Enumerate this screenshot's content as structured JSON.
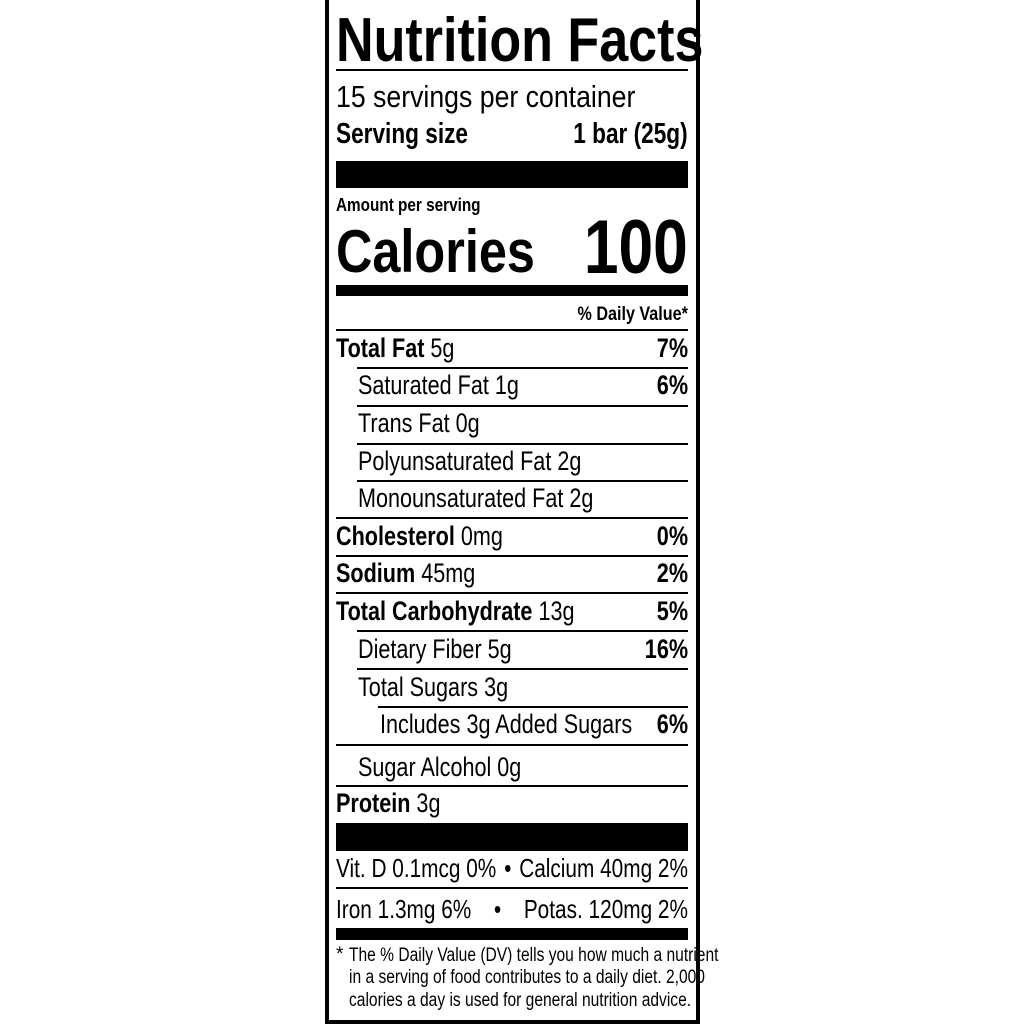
{
  "title": "Nutrition Facts",
  "servings_per_container": "15 servings per container",
  "serving_size": {
    "label": "Serving size",
    "value": "1 bar (25g)"
  },
  "amount_per_serving": "Amount per serving",
  "calories": {
    "label": "Calories",
    "value": "100"
  },
  "daily_value_header": "% Daily Value*",
  "nutrients": [
    {
      "name": "Total Fat",
      "amount": "5g",
      "dv": "7%"
    },
    {
      "name": "Saturated Fat 1g",
      "amount": "",
      "dv": "6%"
    },
    {
      "name": "Trans Fat 0g",
      "amount": "",
      "dv": ""
    },
    {
      "name": "Polyunsaturated Fat 2g",
      "amount": "",
      "dv": ""
    },
    {
      "name": "Monounsaturated Fat 2g",
      "amount": "",
      "dv": ""
    },
    {
      "name": "Cholesterol",
      "amount": "0mg",
      "dv": "0%"
    },
    {
      "name": "Sodium",
      "amount": "45mg",
      "dv": "2%"
    },
    {
      "name": "Total Carbohydrate",
      "amount": "13g",
      "dv": "5%"
    },
    {
      "name": "Dietary Fiber 5g",
      "amount": "",
      "dv": "16%"
    },
    {
      "name": "Total Sugars 3g",
      "amount": "",
      "dv": ""
    },
    {
      "name": "Includes 3g Added Sugars",
      "amount": "",
      "dv": "6%"
    },
    {
      "name": "Sugar Alcohol 0g",
      "amount": "",
      "dv": ""
    },
    {
      "name": "Protein",
      "amount": "3g",
      "dv": ""
    }
  ],
  "micronutrients": [
    {
      "left": "Vit. D 0.1mcg 0%",
      "bullet": "•",
      "right": "Calcium 40mg 2%"
    },
    {
      "left": "Iron 1.3mg 6%",
      "bullet": "•",
      "right": "Potas. 120mg 2%"
    }
  ],
  "footnote": {
    "asterisk": "*",
    "lines": [
      "The % Daily Value (DV) tells you how much a nutrient",
      "in a serving of food contributes to a daily diet. 2,000",
      "calories a day is used for general nutrition advice."
    ]
  }
}
